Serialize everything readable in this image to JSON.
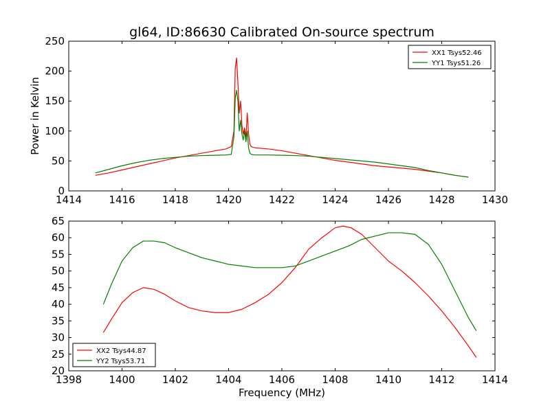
{
  "figure": {
    "title": "gl64, ID:86630 Calibrated On-source spectrum"
  },
  "chart_data": [
    {
      "type": "line",
      "title": "gl64, ID:86630 Calibrated On-source spectrum",
      "xlabel": "",
      "ylabel": "Power in Kelvin",
      "xlim": [
        1414,
        1430
      ],
      "ylim": [
        0,
        250
      ],
      "xticks": [
        1414,
        1416,
        1418,
        1420,
        1422,
        1424,
        1426,
        1428,
        1430
      ],
      "yticks": [
        0,
        50,
        100,
        150,
        200,
        250
      ],
      "grid": false,
      "legend": "top-right",
      "series": [
        {
          "name": "XX1 Tsys52.46",
          "color": "#ff0000",
          "x": [
            1415.0,
            1415.5,
            1416.0,
            1416.5,
            1417.0,
            1417.5,
            1418.0,
            1418.5,
            1419.0,
            1419.5,
            1419.9,
            1420.1,
            1420.2,
            1420.25,
            1420.3,
            1420.35,
            1420.4,
            1420.45,
            1420.5,
            1420.55,
            1420.6,
            1420.65,
            1420.7,
            1420.75,
            1420.8,
            1420.85,
            1420.9,
            1421.0,
            1421.5,
            1422.0,
            1422.5,
            1423.0,
            1423.5,
            1424.0,
            1424.5,
            1425.0,
            1425.5,
            1426.0,
            1426.5,
            1427.0,
            1427.5,
            1428.0,
            1428.5,
            1429.0
          ],
          "y": [
            26,
            30,
            35,
            40,
            45,
            50,
            55,
            59,
            63,
            67,
            70,
            74,
            100,
            205,
            222,
            180,
            130,
            150,
            110,
            95,
            105,
            90,
            130,
            95,
            78,
            74,
            73,
            72,
            70,
            67,
            63,
            59,
            55,
            51,
            48,
            45,
            42,
            40,
            38,
            36,
            33,
            30,
            26,
            23
          ]
        },
        {
          "name": "YY1 Tsys51.26",
          "color": "#008000",
          "x": [
            1415.0,
            1415.5,
            1416.0,
            1416.5,
            1417.0,
            1417.5,
            1418.0,
            1418.5,
            1419.0,
            1419.5,
            1419.9,
            1420.1,
            1420.2,
            1420.25,
            1420.3,
            1420.35,
            1420.4,
            1420.45,
            1420.5,
            1420.55,
            1420.6,
            1420.65,
            1420.7,
            1420.75,
            1420.8,
            1420.85,
            1420.9,
            1421.0,
            1421.5,
            1422.0,
            1422.5,
            1423.0,
            1423.5,
            1424.0,
            1424.5,
            1425.0,
            1425.5,
            1426.0,
            1426.5,
            1427.0,
            1427.5,
            1428.0,
            1428.5,
            1429.0
          ],
          "y": [
            30,
            36,
            42,
            47,
            51,
            54,
            56,
            58,
            59,
            59.5,
            60,
            61,
            90,
            155,
            168,
            150,
            100,
            118,
            95,
            85,
            100,
            82,
            100,
            72,
            63,
            61,
            60.5,
            60,
            60,
            59.5,
            59,
            58,
            56,
            54,
            52,
            50,
            48,
            45,
            42,
            39,
            34,
            30,
            26,
            23
          ]
        }
      ]
    },
    {
      "type": "line",
      "title": "",
      "xlabel": "Frequency (MHz)",
      "ylabel": "",
      "xlim": [
        1398,
        1414
      ],
      "ylim": [
        20,
        65
      ],
      "xticks": [
        1398,
        1400,
        1402,
        1404,
        1406,
        1408,
        1410,
        1412,
        1414
      ],
      "yticks": [
        20,
        25,
        30,
        35,
        40,
        45,
        50,
        55,
        60,
        65
      ],
      "grid": false,
      "legend": "bottom-left",
      "series": [
        {
          "name": "XX2 Tsys44.87",
          "color": "#ff0000",
          "x": [
            1399.3,
            1399.6,
            1400.0,
            1400.4,
            1400.8,
            1401.2,
            1401.6,
            1402.0,
            1402.5,
            1403.0,
            1403.5,
            1404.0,
            1404.5,
            1405.0,
            1405.5,
            1406.0,
            1406.5,
            1407.0,
            1407.5,
            1408.0,
            1408.3,
            1408.6,
            1409.0,
            1409.5,
            1410.0,
            1410.5,
            1411.0,
            1411.5,
            1412.0,
            1412.5,
            1413.0,
            1413.3
          ],
          "y": [
            31.5,
            35.5,
            40.5,
            43.5,
            45,
            44.5,
            43,
            41,
            39,
            38,
            37.5,
            37.5,
            38.5,
            40.5,
            43,
            46.5,
            51,
            56.5,
            60,
            63,
            63.5,
            63,
            61,
            57,
            53,
            50,
            46.5,
            42.5,
            38,
            33,
            27.5,
            24
          ]
        },
        {
          "name": "YY2 Tsys53.71",
          "color": "#008000",
          "x": [
            1399.3,
            1399.6,
            1400.0,
            1400.4,
            1400.8,
            1401.2,
            1401.6,
            1402.0,
            1402.5,
            1403.0,
            1403.5,
            1404.0,
            1404.5,
            1405.0,
            1405.5,
            1406.0,
            1406.5,
            1407.0,
            1407.5,
            1408.0,
            1408.5,
            1409.0,
            1409.5,
            1410.0,
            1410.5,
            1411.0,
            1411.5,
            1412.0,
            1412.5,
            1413.0,
            1413.3
          ],
          "y": [
            40,
            46,
            53,
            57,
            59,
            59,
            58.5,
            57,
            55.5,
            54,
            53,
            52,
            51.5,
            51,
            51,
            51,
            51.5,
            53,
            54.5,
            56,
            57.5,
            59.5,
            60.5,
            61.5,
            61.5,
            61,
            58,
            52,
            44,
            36,
            32
          ]
        }
      ]
    }
  ]
}
